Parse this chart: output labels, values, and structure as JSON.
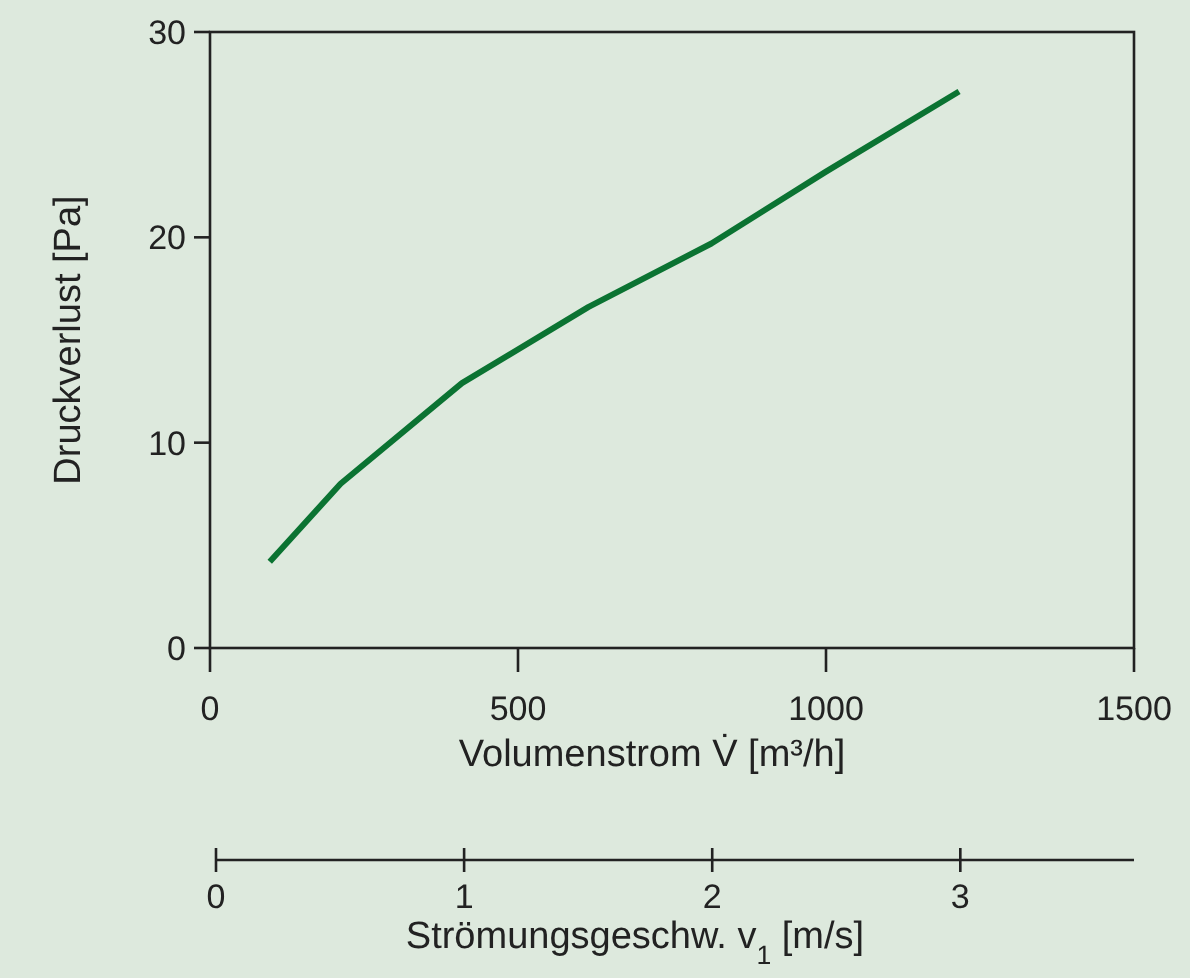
{
  "chart_data": {
    "type": "line",
    "xlabel": "Volumenstrom V̇ [m³/h]",
    "ylabel": "Druckverlust [Pa]",
    "x2label": "Strömungsgeschw. v$_{1}$ [m/s]",
    "x": [
      97,
      212,
      409,
      614,
      814,
      1000,
      1216
    ],
    "series": [
      {
        "color": "#0b7332",
        "values": [
          4.2,
          8.0,
          12.9,
          16.6,
          19.7,
          23.2,
          27.1
        ]
      }
    ],
    "xlim": [
      0,
      1500
    ],
    "xticks": [
      0,
      500,
      1000,
      1500
    ],
    "ylim": [
      0,
      30
    ],
    "yticks": [
      0,
      10,
      20,
      30
    ],
    "x2lim": [
      0,
      3.7
    ],
    "x2ticks": [
      0,
      1,
      2,
      3
    ],
    "grid": false,
    "marker": "none",
    "line_style": "solid"
  }
}
